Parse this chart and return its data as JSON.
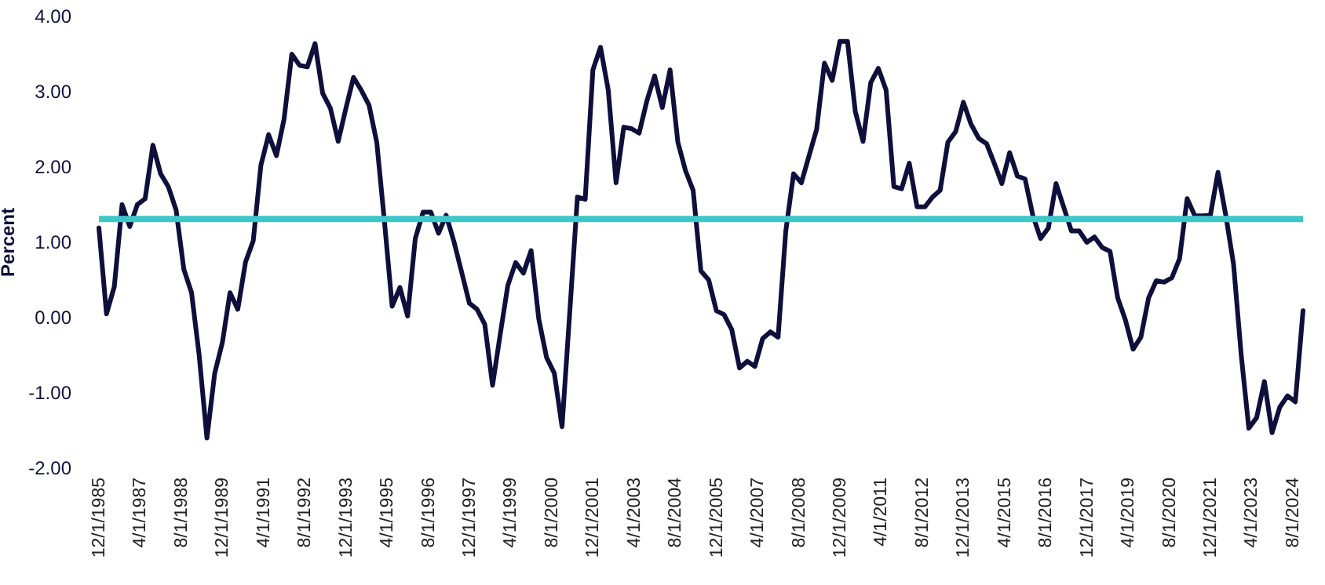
{
  "chart_data": {
    "type": "line",
    "ylabel": "Percent",
    "x": [
      "1985-12-01",
      "1986-03-01",
      "1986-06-01",
      "1986-09-01",
      "1986-12-01",
      "1987-03-01",
      "1987-06-01",
      "1987-09-01",
      "1987-12-01",
      "1988-03-01",
      "1988-06-01",
      "1988-09-01",
      "1988-12-01",
      "1989-03-01",
      "1989-06-01",
      "1989-09-01",
      "1989-12-01",
      "1990-03-01",
      "1990-06-01",
      "1990-09-01",
      "1990-12-01",
      "1991-03-01",
      "1991-06-01",
      "1991-09-01",
      "1991-12-01",
      "1992-03-01",
      "1992-06-01",
      "1992-09-01",
      "1992-12-01",
      "1993-03-01",
      "1993-06-01",
      "1993-09-01",
      "1993-12-01",
      "1994-03-01",
      "1994-06-01",
      "1994-09-01",
      "1994-12-01",
      "1995-03-01",
      "1995-06-01",
      "1995-09-01",
      "1995-12-01",
      "1996-03-01",
      "1996-06-01",
      "1996-09-01",
      "1996-12-01",
      "1997-03-01",
      "1997-06-01",
      "1997-09-01",
      "1997-12-01",
      "1998-03-01",
      "1998-06-01",
      "1998-09-01",
      "1998-12-01",
      "1999-03-01",
      "1999-06-01",
      "1999-09-01",
      "1999-12-01",
      "2000-03-01",
      "2000-06-01",
      "2000-09-01",
      "2000-12-01",
      "2001-03-01",
      "2001-06-01",
      "2001-09-01",
      "2001-12-01",
      "2002-03-01",
      "2002-06-01",
      "2002-09-01",
      "2002-12-01",
      "2003-03-01",
      "2003-06-01",
      "2003-09-01",
      "2003-12-01",
      "2004-03-01",
      "2004-06-01",
      "2004-09-01",
      "2004-12-01",
      "2005-03-01",
      "2005-06-01",
      "2005-09-01",
      "2005-12-01",
      "2006-03-01",
      "2006-06-01",
      "2006-09-01",
      "2006-12-01",
      "2007-03-01",
      "2007-06-01",
      "2007-09-01",
      "2007-12-01",
      "2008-03-01",
      "2008-06-01",
      "2008-09-01",
      "2008-12-01",
      "2009-03-01",
      "2009-06-01",
      "2009-09-01",
      "2009-12-01",
      "2010-03-01",
      "2010-06-01",
      "2010-09-01",
      "2010-12-01",
      "2011-03-01",
      "2011-06-01",
      "2011-09-01",
      "2011-12-01",
      "2012-03-01",
      "2012-06-01",
      "2012-09-01",
      "2012-12-01",
      "2013-03-01",
      "2013-06-01",
      "2013-09-01",
      "2013-12-01",
      "2014-03-01",
      "2014-06-01",
      "2014-09-01",
      "2014-12-01",
      "2015-03-01",
      "2015-06-01",
      "2015-09-01",
      "2015-12-01",
      "2016-03-01",
      "2016-06-01",
      "2016-09-01",
      "2016-12-01",
      "2017-03-01",
      "2017-06-01",
      "2017-09-01",
      "2017-12-01",
      "2018-03-01",
      "2018-06-01",
      "2018-09-01",
      "2018-12-01",
      "2019-03-01",
      "2019-06-01",
      "2019-09-01",
      "2019-12-01",
      "2020-03-01",
      "2020-06-01",
      "2020-09-01",
      "2020-12-01",
      "2021-03-01",
      "2021-06-01",
      "2021-09-01",
      "2021-12-01",
      "2022-03-01",
      "2022-06-01",
      "2022-09-01",
      "2022-12-01",
      "2023-03-01",
      "2023-06-01",
      "2023-09-01",
      "2023-12-01",
      "2024-03-01",
      "2024-06-01",
      "2024-09-01",
      "2024-12-01"
    ],
    "series": [
      {
        "color": "#0f0f3c",
        "values": [
          1.18,
          0.04,
          0.4,
          1.49,
          1.2,
          1.49,
          1.57,
          2.28,
          1.9,
          1.73,
          1.42,
          0.63,
          0.32,
          -0.51,
          -1.61,
          -0.75,
          -0.34,
          0.32,
          0.1,
          0.73,
          1.01,
          2.01,
          2.42,
          2.14,
          2.63,
          3.49,
          3.34,
          3.32,
          3.63,
          2.97,
          2.77,
          2.33,
          2.77,
          3.18,
          3.01,
          2.81,
          2.32,
          1.28,
          0.14,
          0.39,
          0.01,
          1.04,
          1.39,
          1.39,
          1.11,
          1.35,
          1.0,
          0.59,
          0.18,
          0.1,
          -0.1,
          -0.91,
          -0.23,
          0.42,
          0.72,
          0.58,
          0.88,
          -0.03,
          -0.54,
          -0.75,
          -1.46,
          0.04,
          1.59,
          1.56,
          3.28,
          3.58,
          3.01,
          1.78,
          2.52,
          2.5,
          2.44,
          2.87,
          3.2,
          2.78,
          3.28,
          2.32,
          1.94,
          1.68,
          0.61,
          0.49,
          0.08,
          0.03,
          -0.17,
          -0.68,
          -0.59,
          -0.66,
          -0.29,
          -0.2,
          -0.27,
          1.14,
          1.9,
          1.78,
          2.14,
          2.49,
          3.37,
          3.14,
          3.66,
          3.66,
          2.73,
          2.33,
          3.11,
          3.3,
          3.01,
          1.73,
          1.7,
          2.04,
          1.46,
          1.46,
          1.59,
          1.68,
          2.32,
          2.46,
          2.85,
          2.56,
          2.37,
          2.3,
          2.04,
          1.77,
          2.18,
          1.87,
          1.83,
          1.35,
          1.04,
          1.18,
          1.77,
          1.46,
          1.14,
          1.14,
          0.99,
          1.06,
          0.92,
          0.87,
          0.25,
          -0.04,
          -0.43,
          -0.27,
          0.25,
          0.48,
          0.46,
          0.52,
          0.77,
          1.57,
          1.34,
          1.34,
          1.35,
          1.92,
          1.35,
          0.7,
          -0.51,
          -1.48,
          -1.34,
          -0.86,
          -1.54,
          -1.2,
          -1.05,
          -1.13,
          0.08
        ]
      }
    ],
    "xlim": [
      "1985-12-01",
      "2024-12-01"
    ],
    "xticks": [
      {
        "value": "1985-12-01",
        "label": "12/1/1985"
      },
      {
        "value": "1987-04-01",
        "label": "4/1/1987"
      },
      {
        "value": "1988-08-01",
        "label": "8/1/1988"
      },
      {
        "value": "1989-12-01",
        "label": "12/1/1989"
      },
      {
        "value": "1991-04-01",
        "label": "4/1/1991"
      },
      {
        "value": "1992-08-01",
        "label": "8/1/1992"
      },
      {
        "value": "1993-12-01",
        "label": "12/1/1993"
      },
      {
        "value": "1995-04-01",
        "label": "4/1/1995"
      },
      {
        "value": "1996-08-01",
        "label": "8/1/1996"
      },
      {
        "value": "1997-12-01",
        "label": "12/1/1997"
      },
      {
        "value": "1999-04-01",
        "label": "4/1/1999"
      },
      {
        "value": "2000-08-01",
        "label": "8/1/2000"
      },
      {
        "value": "2001-12-01",
        "label": "12/1/2001"
      },
      {
        "value": "2003-04-01",
        "label": "4/1/2003"
      },
      {
        "value": "2004-08-01",
        "label": "8/1/2004"
      },
      {
        "value": "2005-12-01",
        "label": "12/1/2005"
      },
      {
        "value": "2007-04-01",
        "label": "4/1/2007"
      },
      {
        "value": "2008-08-01",
        "label": "8/1/2008"
      },
      {
        "value": "2009-12-01",
        "label": "12/1/2009"
      },
      {
        "value": "2011-04-01",
        "label": "4/1/2011"
      },
      {
        "value": "2012-08-01",
        "label": "8/1/2012"
      },
      {
        "value": "2013-12-01",
        "label": "12/1/2013"
      },
      {
        "value": "2015-04-01",
        "label": "4/1/2015"
      },
      {
        "value": "2016-08-01",
        "label": "8/1/2016"
      },
      {
        "value": "2017-12-01",
        "label": "12/1/2017"
      },
      {
        "value": "2019-04-01",
        "label": "4/1/2019"
      },
      {
        "value": "2020-08-01",
        "label": "8/1/2020"
      },
      {
        "value": "2021-12-01",
        "label": "12/1/2021"
      },
      {
        "value": "2023-04-01",
        "label": "4/1/2023"
      },
      {
        "value": "2024-08-01",
        "label": "8/1/2024"
      }
    ],
    "ylim": [
      -2,
      4
    ],
    "yticks": [
      {
        "value": -2,
        "label": "-2.00"
      },
      {
        "value": -1,
        "label": "-1.00"
      },
      {
        "value": 0,
        "label": "0.00"
      },
      {
        "value": 1,
        "label": "1.00"
      },
      {
        "value": 2,
        "label": "2.00"
      },
      {
        "value": 3,
        "label": "3.00"
      },
      {
        "value": 4,
        "label": "4.00"
      }
    ],
    "ref_lines": [
      {
        "axis": "y",
        "value": 1.3,
        "color": "#3ec6c9"
      }
    ],
    "grid": false
  }
}
